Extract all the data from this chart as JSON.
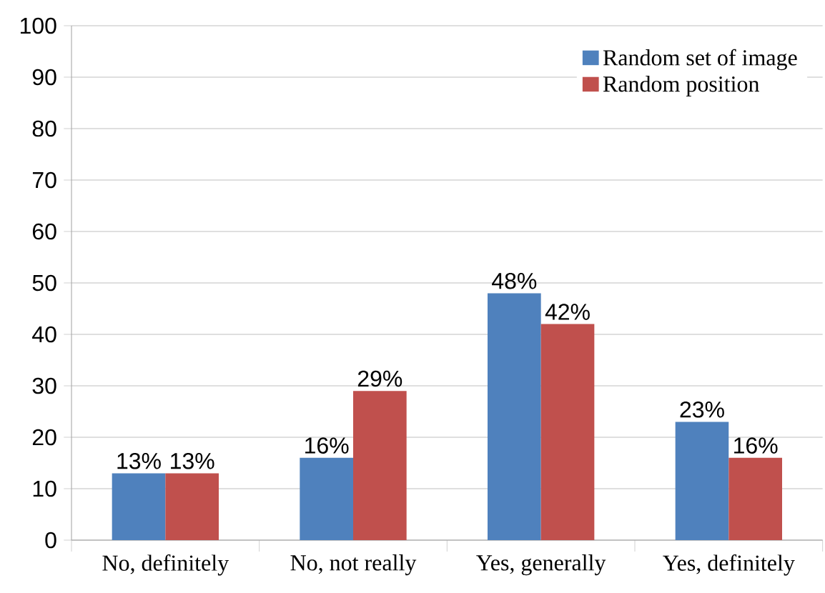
{
  "chart_data": {
    "type": "bar",
    "categories": [
      "No, definitely",
      "No, not really",
      "Yes, generally",
      "Yes, definitely"
    ],
    "series": [
      {
        "name": "Random set of image",
        "color": "#4f81bd",
        "values": [
          13,
          16,
          48,
          23
        ],
        "value_labels": [
          "13%",
          "16%",
          "48%",
          "23%"
        ]
      },
      {
        "name": "Random position",
        "color": "#c0504d",
        "values": [
          13,
          29,
          42,
          16
        ],
        "value_labels": [
          "13%",
          "29%",
          "42%",
          "16%"
        ]
      }
    ],
    "ylim": [
      0,
      100
    ],
    "yticks": [
      0,
      10,
      20,
      30,
      40,
      50,
      60,
      70,
      80,
      90,
      100
    ],
    "grid": "y",
    "legend": "top right"
  }
}
